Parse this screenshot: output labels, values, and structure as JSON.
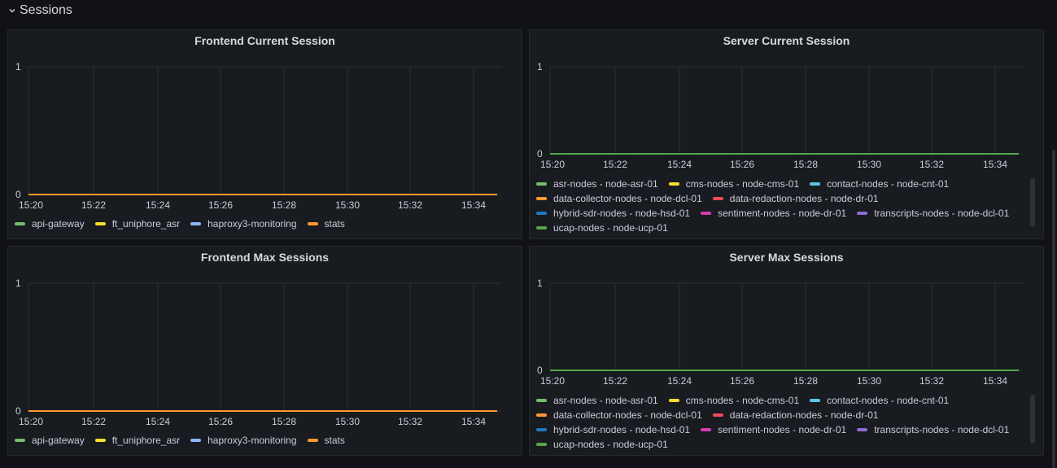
{
  "row": {
    "title": "Sessions"
  },
  "colors": {
    "api-gateway": "#73bf69",
    "ft_uniphore_asr": "#fade2a",
    "haproxy3-monitoring": "#5794f2",
    "stats": "#ff9830",
    "grid": "#2c3235",
    "green_line": "#56a64b"
  },
  "panels": [
    {
      "id": "frontend-current",
      "title": "Frontend Current Session",
      "legend": [
        {
          "label": "api-gateway",
          "color": "#73bf69"
        },
        {
          "label": "ft_uniphore_asr",
          "color": "#fade2a"
        },
        {
          "label": "haproxy3-monitoring",
          "color": "#8ab8ff"
        },
        {
          "label": "stats",
          "color": "#ff9830"
        }
      ],
      "chart_data": {
        "type": "line",
        "x": [
          "15:20",
          "15:22",
          "15:24",
          "15:26",
          "15:28",
          "15:30",
          "15:32",
          "15:34"
        ],
        "yticks": [
          "1",
          "0"
        ],
        "ylim": [
          0,
          1
        ],
        "series": [
          {
            "name": "api-gateway",
            "values": [
              0,
              0,
              0,
              0,
              0,
              0,
              0,
              0
            ]
          },
          {
            "name": "ft_uniphore_asr",
            "values": [
              0,
              0,
              0,
              0,
              0,
              0,
              0,
              0
            ]
          },
          {
            "name": "haproxy3-monitoring",
            "values": [
              0,
              0,
              0,
              0,
              0,
              0,
              0,
              0
            ]
          },
          {
            "name": "stats",
            "values": [
              0,
              0,
              0,
              0,
              0,
              0,
              0,
              0
            ]
          }
        ]
      }
    },
    {
      "id": "server-current",
      "title": "Server Current Session",
      "legend": [
        {
          "label": "asr-nodes - node-asr-01",
          "color": "#73bf69"
        },
        {
          "label": "cms-nodes - node-cms-01",
          "color": "#fade2a"
        },
        {
          "label": "contact-nodes - node-cnt-01",
          "color": "#5ac8e6"
        },
        {
          "label": "data-collector-nodes - node-dcl-01",
          "color": "#ff9830"
        },
        {
          "label": "data-redaction-nodes - node-dr-01",
          "color": "#f2495c"
        },
        {
          "label": "hybrid-sdr-nodes - node-hsd-01",
          "color": "#1f78c1"
        },
        {
          "label": "sentiment-nodes - node-dr-01",
          "color": "#d63cb0"
        },
        {
          "label": "transcripts-nodes - node-dcl-01",
          "color": "#8f6bd6"
        },
        {
          "label": "ucap-nodes - node-ucp-01",
          "color": "#56a64b"
        }
      ],
      "chart_data": {
        "type": "line",
        "x": [
          "15:20",
          "15:22",
          "15:24",
          "15:26",
          "15:28",
          "15:30",
          "15:32",
          "15:34"
        ],
        "yticks": [
          "1",
          "0"
        ],
        "ylim": [
          0,
          1
        ],
        "series": [
          {
            "name": "ucap-nodes - node-ucp-01",
            "values": [
              0,
              0,
              0,
              0,
              0,
              0,
              0,
              0
            ]
          }
        ]
      }
    },
    {
      "id": "frontend-max",
      "title": "Frontend Max Sessions",
      "legend": [
        {
          "label": "api-gateway",
          "color": "#73bf69"
        },
        {
          "label": "ft_uniphore_asr",
          "color": "#fade2a"
        },
        {
          "label": "haproxy3-monitoring",
          "color": "#8ab8ff"
        },
        {
          "label": "stats",
          "color": "#ff9830"
        }
      ],
      "chart_data": {
        "type": "line",
        "x": [
          "15:20",
          "15:22",
          "15:24",
          "15:26",
          "15:28",
          "15:30",
          "15:32",
          "15:34"
        ],
        "yticks": [
          "1",
          "0"
        ],
        "ylim": [
          0,
          1
        ],
        "series": [
          {
            "name": "stats",
            "values": [
              0,
              0,
              0,
              0,
              0,
              0,
              0,
              0
            ]
          }
        ]
      }
    },
    {
      "id": "server-max",
      "title": "Server Max Sessions",
      "legend": [
        {
          "label": "asr-nodes - node-asr-01",
          "color": "#73bf69"
        },
        {
          "label": "cms-nodes - node-cms-01",
          "color": "#fade2a"
        },
        {
          "label": "contact-nodes - node-cnt-01",
          "color": "#5ac8e6"
        },
        {
          "label": "data-collector-nodes - node-dcl-01",
          "color": "#ff9830"
        },
        {
          "label": "data-redaction-nodes - node-dr-01",
          "color": "#f2495c"
        },
        {
          "label": "hybrid-sdr-nodes - node-hsd-01",
          "color": "#1f78c1"
        },
        {
          "label": "sentiment-nodes - node-dr-01",
          "color": "#d63cb0"
        },
        {
          "label": "transcripts-nodes - node-dcl-01",
          "color": "#8f6bd6"
        },
        {
          "label": "ucap-nodes - node-ucp-01",
          "color": "#56a64b"
        }
      ],
      "chart_data": {
        "type": "line",
        "x": [
          "15:20",
          "15:22",
          "15:24",
          "15:26",
          "15:28",
          "15:30",
          "15:32",
          "15:34"
        ],
        "yticks": [
          "1",
          "0"
        ],
        "ylim": [
          0,
          1
        ],
        "series": [
          {
            "name": "ucap-nodes - node-ucp-01",
            "values": [
              0,
              0,
              0,
              0,
              0,
              0,
              0,
              0
            ]
          }
        ]
      }
    }
  ]
}
